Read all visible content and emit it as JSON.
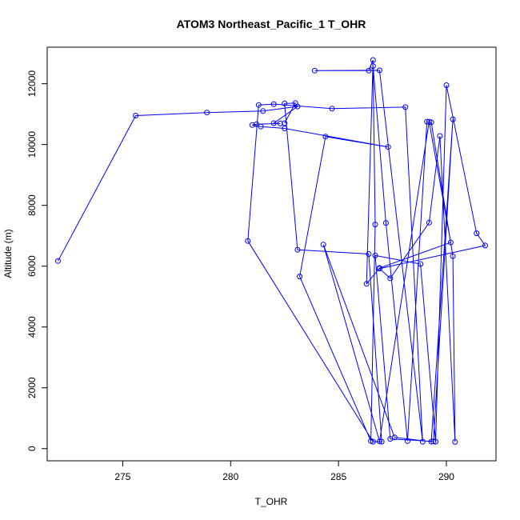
{
  "chart_data": {
    "type": "line",
    "title": "ATOM3 Northeast_Pacific_1 T_OHR",
    "xlabel": "T_OHR",
    "ylabel": "Altitude (m)",
    "xlim": [
      271.5,
      292.3
    ],
    "ylim": [
      -400,
      13200
    ],
    "xticks": [
      275,
      280,
      285,
      290
    ],
    "yticks": [
      0,
      2000,
      4000,
      6000,
      8000,
      10000,
      12000
    ],
    "grid": false,
    "legend": "none",
    "color": "#0000ff",
    "series": [
      {
        "x": [
          272.0,
          275.6,
          278.9,
          281.5,
          283.1,
          282.0,
          282.3,
          281.2,
          281.0,
          281.4,
          282.5,
          287.3,
          284.4,
          283.2,
          286.5,
          286.7,
          286.6,
          287.2,
          288.2,
          289.1,
          289.3,
          290.3,
          290.4,
          289.7,
          289.2,
          287.4,
          286.9,
          291.8,
          291.4,
          290.0,
          289.5,
          288.8,
          286.7,
          287.4,
          289.4,
          290.3,
          289.3,
          287.6,
          284.3,
          286.9,
          289.2,
          290.2,
          286.9,
          286.3,
          286.6,
          286.4,
          283.9,
          286.9,
          288.9,
          288.1,
          284.7,
          282.0,
          281.3,
          280.8,
          286.6,
          287.0,
          286.4,
          283.1,
          282.5,
          283.0,
          282.5
        ],
        "y": [
          6170,
          10950,
          11050,
          11100,
          11250,
          10700,
          10690,
          10670,
          10640,
          10590,
          10530,
          9920,
          10260,
          5660,
          250,
          7370,
          12580,
          7420,
          250,
          10750,
          10730,
          6330,
          220,
          10280,
          7430,
          5600,
          5920,
          6680,
          7080,
          11950,
          230,
          6070,
          6350,
          320,
          240,
          10830,
          230,
          370,
          6710,
          240,
          10750,
          6780,
          5940,
          5420,
          12780,
          12430,
          12430,
          12440,
          230,
          11230,
          11180,
          11330,
          11300,
          6830,
          230,
          230,
          6400,
          6540,
          11350,
          11360,
          10700
        ]
      }
    ]
  }
}
